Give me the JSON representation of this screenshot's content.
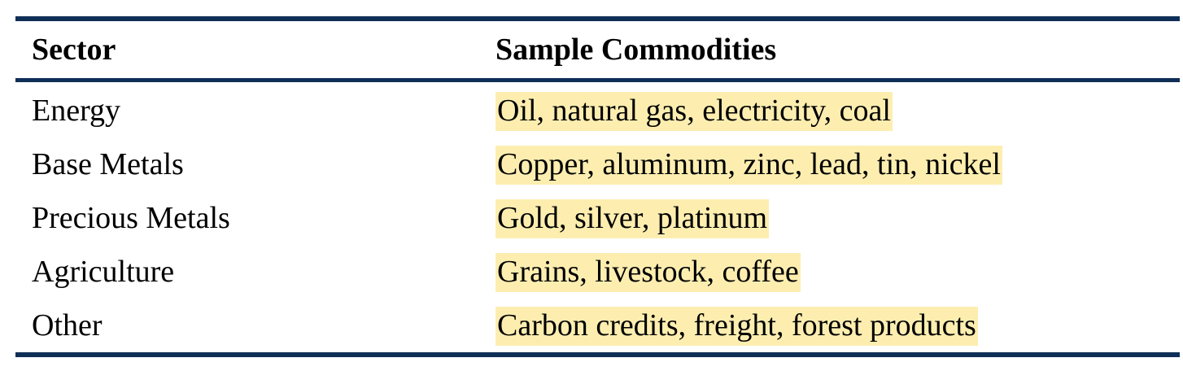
{
  "table": {
    "headers": [
      "Sector",
      "Sample Commodities"
    ],
    "rows": [
      {
        "sector": "Energy",
        "commodities": "Oil, natural gas, electricity, coal"
      },
      {
        "sector": "Base Metals",
        "commodities": "Copper, aluminum, zinc, lead, tin, nickel"
      },
      {
        "sector": "Precious Metals",
        "commodities": "Gold, silver, platinum"
      },
      {
        "sector": "Agriculture",
        "commodities": "Grains, livestock, coffee"
      },
      {
        "sector": "Other",
        "commodities": "Carbon credits, freight, forest products"
      }
    ],
    "colors": {
      "rule": "#0f2f57",
      "highlight": "#fdeeb0"
    }
  }
}
